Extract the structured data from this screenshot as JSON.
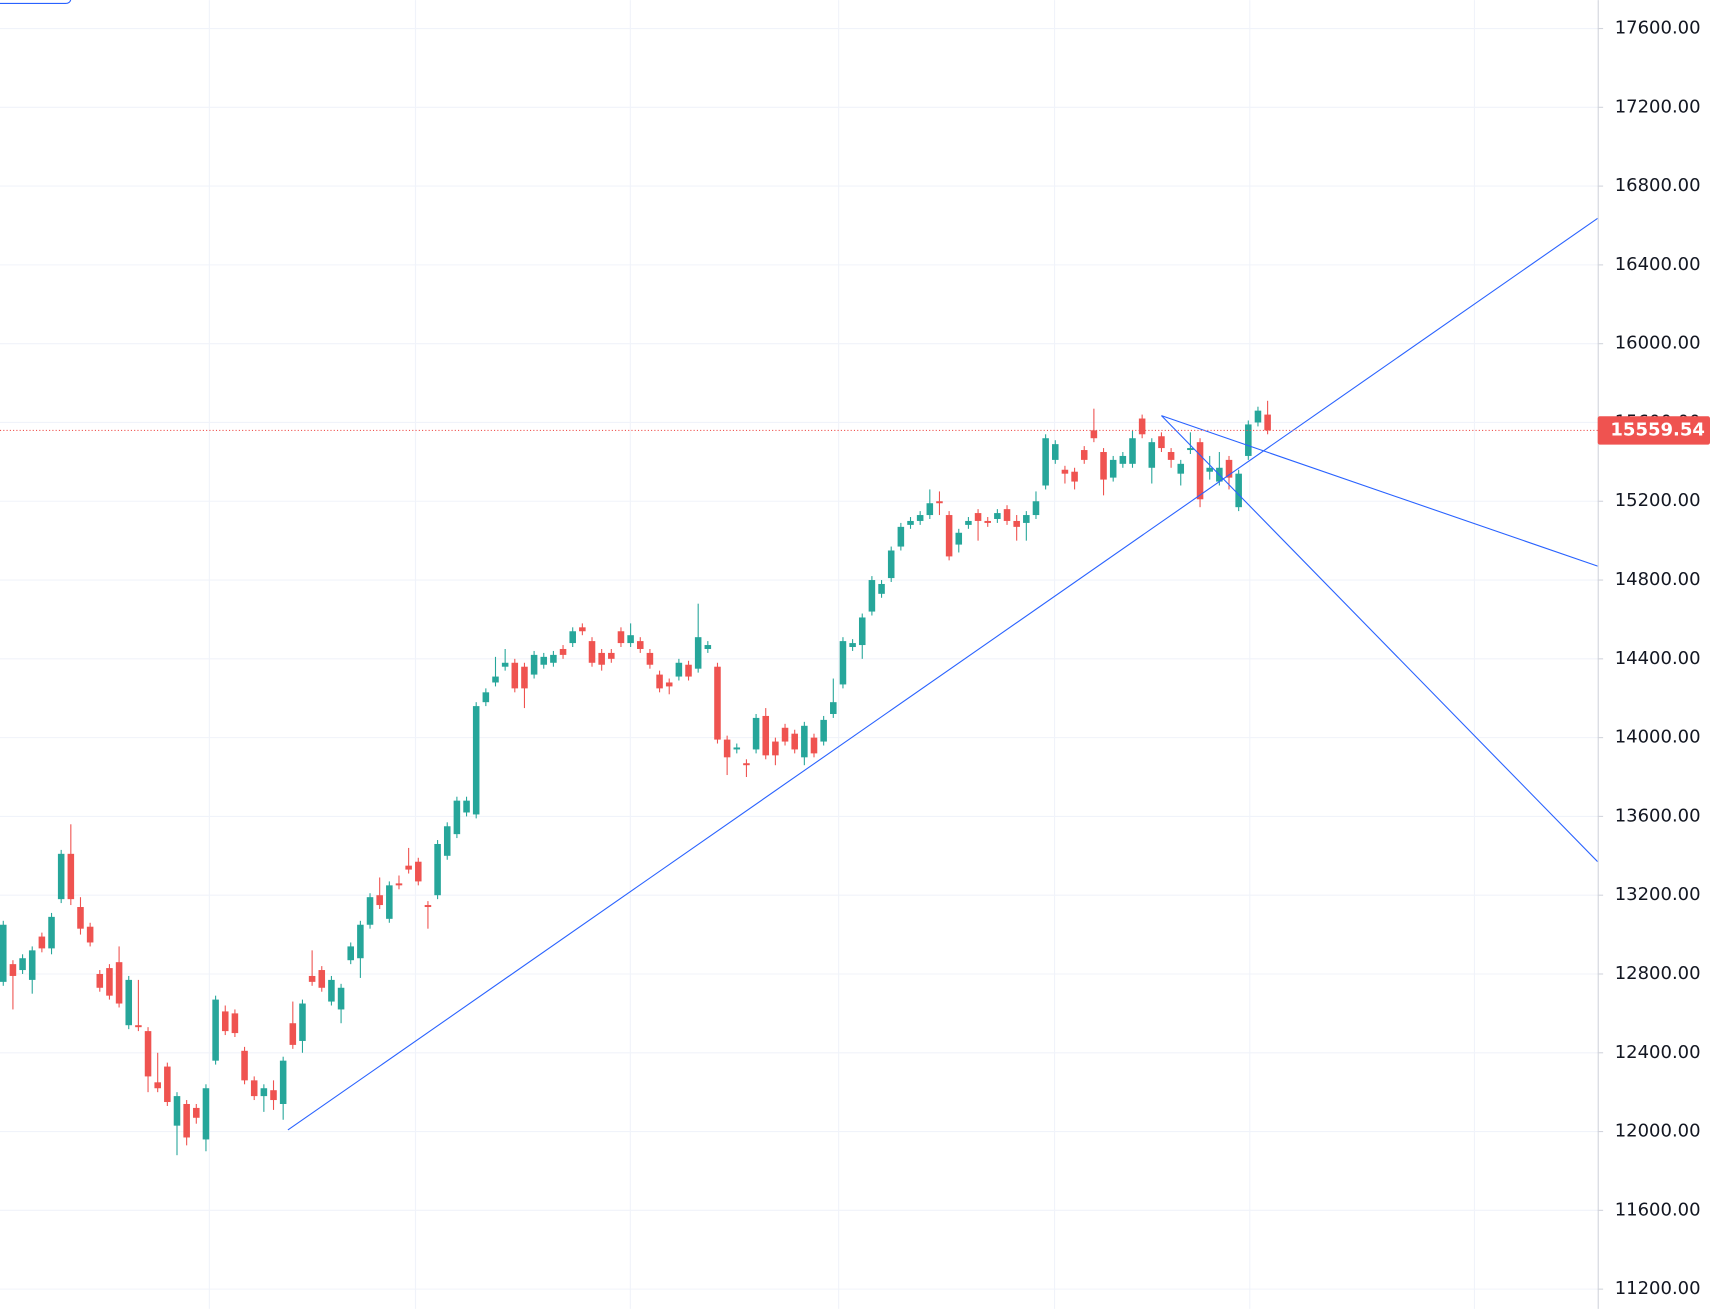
{
  "chart_data": {
    "type": "candlestick",
    "up_color": "#26a69a",
    "down_color": "#ef5350",
    "grid": true,
    "ylim": [
      11100,
      17744
    ],
    "yticks": [
      {
        "value": 11200,
        "label": "11200.00"
      },
      {
        "value": 11600,
        "label": "11600.00"
      },
      {
        "value": 12000,
        "label": "12000.00"
      },
      {
        "value": 12400,
        "label": "12400.00"
      },
      {
        "value": 12800,
        "label": "12800.00"
      },
      {
        "value": 13200,
        "label": "13200.00"
      },
      {
        "value": 13600,
        "label": "13600.00"
      },
      {
        "value": 14000,
        "label": "14000.00"
      },
      {
        "value": 14400,
        "label": "14400.00"
      },
      {
        "value": 14800,
        "label": "14800.00"
      },
      {
        "value": 15200,
        "label": "15200.00"
      },
      {
        "value": 15600,
        "label": "15600.00"
      },
      {
        "value": 16000,
        "label": "16000.00"
      },
      {
        "value": 16400,
        "label": "16400.00"
      },
      {
        "value": 16800,
        "label": "16800.00"
      },
      {
        "value": 17200,
        "label": "17200.00"
      },
      {
        "value": 17600,
        "label": "17600.00"
      }
    ],
    "last_price": 15559.54,
    "last_price_color": "#ef5350",
    "open": [
      12760,
      12850,
      12820,
      12770,
      12990,
      12930,
      13180,
      13410,
      13140,
      13040,
      12800,
      12830,
      12860,
      12540,
      12540,
      12510,
      12250,
      12330,
      12030,
      12140,
      12120,
      11960,
      12360,
      12610,
      12600,
      12410,
      12260,
      12180,
      12210,
      12140,
      12550,
      12460,
      12790,
      12820,
      12660,
      12620,
      12870,
      12880,
      13050,
      13200,
      13080,
      13260,
      13350,
      13370,
      13150,
      13200,
      13400,
      13510,
      13620,
      13610,
      14180,
      14280,
      14360,
      14380,
      14360,
      14320,
      14370,
      14380,
      14450,
      14480,
      14560,
      14490,
      14430,
      14430,
      14540,
      14480,
      14490,
      14430,
      14320,
      14280,
      14310,
      14370,
      14350,
      14450,
      14360,
      13990,
      13940,
      13870,
      13940,
      14110,
      13980,
      14050,
      14020,
      13900,
      14000,
      13980,
      14120,
      14270,
      14460,
      14470,
      14640,
      14730,
      14810,
      14970,
      15080,
      15100,
      15130,
      15200,
      15130,
      14980,
      15080,
      15140,
      15100,
      15110,
      15160,
      15100,
      15090,
      15130,
      15280,
      15410,
      15360,
      15350,
      15460,
      15560,
      15450,
      15320,
      15390,
      15390,
      15620,
      15370,
      15530,
      15450,
      15340,
      15460,
      15500,
      15350,
      15300,
      15410,
      15170,
      15430,
      15600,
      15640
    ],
    "high": [
      13070,
      12870,
      12900,
      12940,
      13010,
      13110,
      13430,
      13560,
      13190,
      13060,
      12820,
      12850,
      12940,
      12790,
      12770,
      12530,
      12400,
      12350,
      12200,
      12160,
      12140,
      12240,
      12690,
      12640,
      12620,
      12430,
      12280,
      12240,
      12260,
      12380,
      12660,
      12670,
      12920,
      12840,
      12790,
      12750,
      12960,
      13070,
      13210,
      13290,
      13270,
      13300,
      13440,
      13390,
      13170,
      13480,
      13570,
      13700,
      13700,
      14180,
      14250,
      14410,
      14450,
      14400,
      14380,
      14440,
      14430,
      14440,
      14470,
      14560,
      14580,
      14510,
      14450,
      14450,
      14560,
      14580,
      14510,
      14450,
      14340,
      14300,
      14400,
      14390,
      14680,
      14490,
      14380,
      14010,
      13970,
      13890,
      14120,
      14150,
      14000,
      14070,
      14040,
      14080,
      14020,
      14110,
      14300,
      14510,
      14500,
      14630,
      14820,
      14800,
      14970,
      15090,
      15120,
      15150,
      15260,
      15250,
      15150,
      15060,
      15120,
      15160,
      15120,
      15160,
      15180,
      15130,
      15150,
      15250,
      15540,
      15510,
      15380,
      15370,
      15480,
      15670,
      15470,
      15430,
      15450,
      15560,
      15640,
      15520,
      15550,
      15470,
      15410,
      15550,
      15520,
      15430,
      15450,
      15430,
      15360,
      15610,
      15680,
      15710
    ],
    "low": [
      12740,
      12620,
      12800,
      12700,
      12910,
      12900,
      13160,
      13150,
      13000,
      12940,
      12710,
      12670,
      12630,
      12520,
      12510,
      12200,
      12200,
      12130,
      11880,
      11930,
      12040,
      11900,
      12340,
      12490,
      12480,
      12240,
      12160,
      12100,
      12110,
      12060,
      12420,
      12400,
      12740,
      12710,
      12640,
      12550,
      12850,
      12780,
      13030,
      13130,
      13060,
      13230,
      13310,
      13250,
      13030,
      13180,
      13380,
      13490,
      13600,
      13590,
      14160,
      14260,
      14340,
      14230,
      14150,
      14300,
      14350,
      14360,
      14400,
      14460,
      14520,
      14360,
      14340,
      14380,
      14460,
      14460,
      14430,
      14350,
      14230,
      14220,
      14290,
      14290,
      14330,
      14430,
      13970,
      13810,
      13920,
      13800,
      13920,
      13890,
      13860,
      13960,
      13920,
      13860,
      13900,
      13960,
      14100,
      14250,
      14440,
      14400,
      14620,
      14710,
      14790,
      14950,
      15060,
      15080,
      15110,
      15130,
      14900,
      14940,
      15060,
      15000,
      15070,
      15090,
      15080,
      15000,
      15000,
      15110,
      15260,
      15390,
      15290,
      15260,
      15390,
      15500,
      15230,
      15300,
      15370,
      15370,
      15520,
      15290,
      15450,
      15370,
      15280,
      15440,
      15170,
      15310,
      15280,
      15260,
      15150,
      15410,
      15580,
      15540
    ],
    "close": [
      13050,
      12790,
      12880,
      12920,
      12930,
      13090,
      13410,
      13180,
      13030,
      12960,
      12730,
      12690,
      12650,
      12770,
      12530,
      12280,
      12220,
      12150,
      12180,
      11970,
      12070,
      12220,
      12670,
      12510,
      12500,
      12260,
      12180,
      12220,
      12160,
      12360,
      12440,
      12650,
      12760,
      12730,
      12770,
      12730,
      12940,
      13050,
      13190,
      13150,
      13250,
      13250,
      13330,
      13270,
      13140,
      13460,
      13550,
      13680,
      13680,
      14160,
      14230,
      14310,
      14380,
      14250,
      14250,
      14420,
      14410,
      14420,
      14420,
      14540,
      14540,
      14380,
      14370,
      14400,
      14480,
      14520,
      14450,
      14370,
      14250,
      14260,
      14380,
      14310,
      14510,
      14470,
      13990,
      13900,
      13950,
      13860,
      14100,
      13910,
      13910,
      13980,
      13940,
      14060,
      13920,
      14090,
      14180,
      14490,
      14480,
      14610,
      14800,
      14780,
      14950,
      15070,
      15100,
      15130,
      15190,
      15190,
      14920,
      15040,
      15100,
      15100,
      15090,
      15140,
      15100,
      15070,
      15130,
      15200,
      15520,
      15490,
      15340,
      15300,
      15410,
      15520,
      15310,
      15410,
      15430,
      15520,
      15540,
      15500,
      15470,
      15410,
      15390,
      15470,
      15210,
      15370,
      15370,
      15320,
      15340,
      15590,
      15660,
      15559.54
    ]
  }
}
